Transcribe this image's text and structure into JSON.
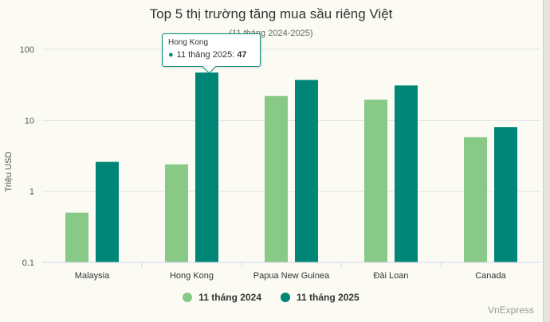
{
  "chart_data": {
    "type": "bar",
    "title": "Top 5 thị trường tăng mua sầu riêng Việt",
    "subtitle": "(11 tháng 2024-2025)",
    "ylabel": "Triệu USD",
    "yscale": "log",
    "ylim": [
      0.1,
      100
    ],
    "yticks": [
      "100",
      "10",
      "1",
      "0.1"
    ],
    "categories": [
      "Malaysia",
      "Hong Kong",
      "Papua New Guinea",
      "Đài Loan",
      "Canada"
    ],
    "series": [
      {
        "name": "11 tháng 2024",
        "color": "#88c987",
        "values": [
          0.5,
          2.4,
          22,
          19.5,
          5.8
        ]
      },
      {
        "name": "11 tháng 2025",
        "color": "#008677",
        "values": [
          2.6,
          47,
          37,
          31,
          8
        ]
      }
    ],
    "legend_position": "bottom",
    "grid": true
  },
  "tooltip": {
    "category": "Hong Kong",
    "series_label": "11 tháng 2025: ",
    "value": "47"
  },
  "credit": "VnExpress"
}
